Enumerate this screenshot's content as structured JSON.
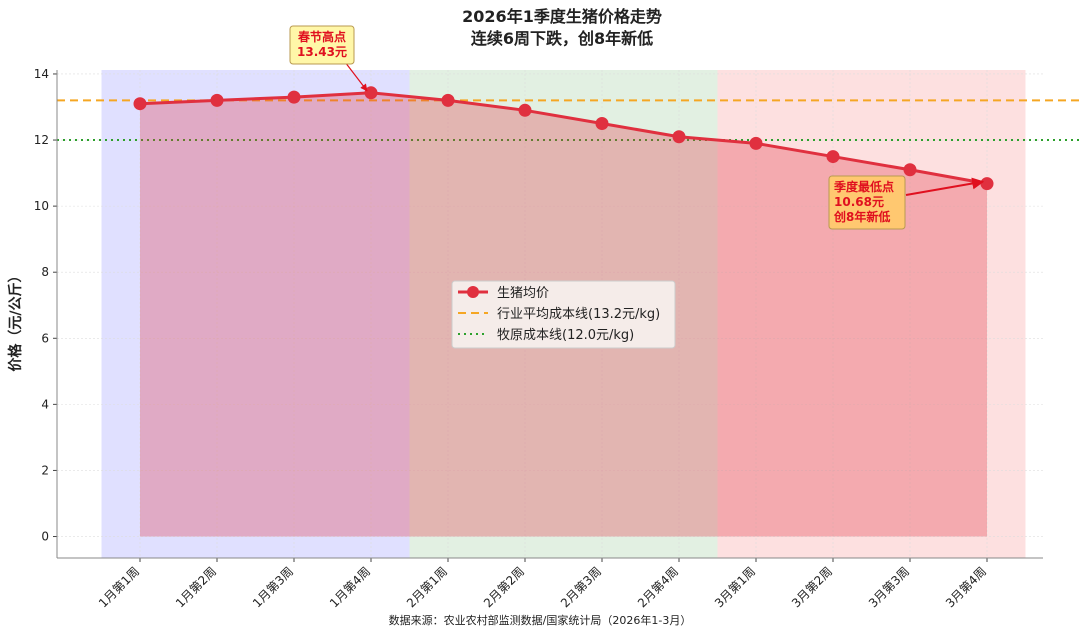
{
  "chart_data": {
    "type": "line",
    "title": "2026年1季度生猪价格走势",
    "subtitle": "连续6周下跌，创8年新低",
    "y_label": "价格（元/公斤）",
    "source": "数据来源：农业农村部监测数据/国家统计局（2026年1-3月）",
    "categories": [
      "1月第1周",
      "1月第2周",
      "1月第3周",
      "1月第4周",
      "2月第1周",
      "2月第2周",
      "2月第3周",
      "2月第4周",
      "3月第1周",
      "3月第2周",
      "3月第3周",
      "3月第4周"
    ],
    "series": [
      {
        "name": "生猪均价",
        "color": "#e0303f",
        "values": [
          13.1,
          13.2,
          13.3,
          13.43,
          13.2,
          12.9,
          12.5,
          12.1,
          11.9,
          11.5,
          11.1,
          10.68
        ]
      }
    ],
    "reference_lines": [
      {
        "name": "行业平均成本线(13.2元/kg)",
        "value": 13.2,
        "color": "#f5a623",
        "style": "dashed"
      },
      {
        "name": "牧原成本线(12.0元/kg)",
        "value": 12.0,
        "color": "#2ca02c",
        "style": "dotted"
      }
    ],
    "annotations": [
      {
        "lines": [
          "春节高点",
          "13.43元"
        ],
        "fill": "#fff7a8"
      },
      {
        "lines": [
          "季度最低点",
          "10.68元",
          "创8年新低"
        ],
        "fill": "#ffc870"
      }
    ],
    "ylim": [
      -0.65,
      14.12
    ],
    "yticks": [
      0,
      2,
      4,
      6,
      8,
      10,
      12,
      14
    ],
    "grid": true
  }
}
